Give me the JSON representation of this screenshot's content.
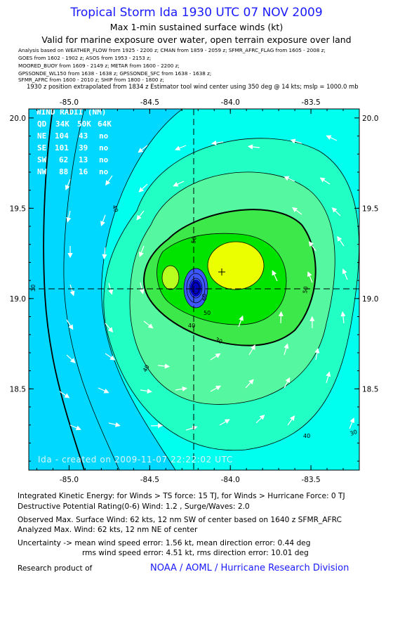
{
  "header": {
    "title": "Tropical Storm Ida 1930 UTC 07 NOV 2009",
    "subtitle1": "Max 1-min sustained surface winds (kt)",
    "subtitle2": "Valid for marine exposure over water, open terrain exposure over land",
    "sources": [
      "Analysis based on   WEATHER_FLOW from 1925 - 2200 z;  CMAN from 1859 - 2059 z;  SFMR_AFRC_FLAG from 1605 - 2008 z;",
      "GOES from 1602 - 1902 z;  ASOS from 1953 - 2153 z;",
      "MOORED_BUOY from 1609 - 2149 z;  METAR from 1600 - 2200 z;",
      "GPSSONDE_WL150 from 1638 - 1638 z;  GPSSONDE_SFC from 1638 - 1638 z;",
      "SFMR_AFRC from 1600 - 2010 z;  SHIP from 1800 - 1800 z;"
    ],
    "position_note": "1930 z position extrapolated from 1834 z Estimator tool wind center using 350 deg @ 14 kts; mslp = 1000.0 mb"
  },
  "chart_data": {
    "type": "contour",
    "x_axis": {
      "range": [
        -85.25,
        -83.2
      ],
      "ticks": [
        -85.0,
        -84.5,
        -84.0,
        -83.5
      ],
      "tick_labels": [
        "-85.0",
        "-84.5",
        "-84.0",
        "-83.5"
      ]
    },
    "y_axis": {
      "range": [
        18.05,
        20.05
      ],
      "ticks": [
        18.5,
        19.0,
        19.5,
        20.0
      ],
      "tick_labels": [
        "18.5",
        "19.0",
        "19.5",
        "20.0"
      ]
    },
    "storm_center": {
      "lon": -84.22,
      "lat": 19.06
    },
    "max_wind_marker": {
      "lon": -84.06,
      "lat": 19.15
    },
    "contour_labels": [
      "30",
      "40",
      "50",
      "60",
      "50",
      "40",
      "30",
      "40",
      "50",
      "40",
      "30"
    ],
    "fill_colors": [
      "#2ab3ff",
      "#00d8ff",
      "#00ffee",
      "#22ffc4",
      "#55f8a0",
      "#3de84a",
      "#00e400",
      "#b8ff20",
      "#ecff00",
      "#3d57ff",
      "#0000c0"
    ],
    "wind_radii": {
      "title": "WIND RADII (NM)",
      "header": [
        "QD",
        "34K",
        "50K",
        "64K"
      ],
      "rows": [
        [
          "NE",
          "104",
          "43",
          "no"
        ],
        [
          "SE",
          "101",
          "39",
          "no"
        ],
        [
          "SW",
          "62",
          "13",
          "no"
        ],
        [
          "NW",
          "88",
          "16",
          "no"
        ]
      ]
    },
    "watermark": "Ida - created on 2009-11-07 22:22:02 UTC"
  },
  "footer": {
    "ike": "Integrated Kinetic Energy:  for Winds > TS force: 15 TJ,  for Winds > Hurricane Force: 0 TJ",
    "dpr": "Destructive Potential Rating(0-6)   Wind: 1.2 , Surge/Waves: 2.0",
    "observed": "Observed Max. Surface Wind: 62 kts, 12 nm SW of center based on 1640 z SFMR_AFRC",
    "analyzed": "Analyzed Max. Wind: 62 kts, 12 nm NE of center",
    "uncertainty1": "Uncertainty -> mean wind speed error: 1.56 kt,   mean direction error: 0.44 deg",
    "uncertainty2": "rms wind speed error: 4.51 kt,   rms direction error: 10.01 deg",
    "research": "Research product of",
    "org": "NOAA / AOML / Hurricane Research Division"
  }
}
